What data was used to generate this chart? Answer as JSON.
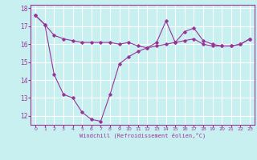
{
  "xlabel": "Windchill (Refroidissement éolien,°C)",
  "bg_color": "#c8f0f0",
  "line_color": "#993399",
  "grid_color": "#ffffff",
  "ylim": [
    11.5,
    18.2
  ],
  "xlim": [
    -0.5,
    23.5
  ],
  "yticks": [
    12,
    13,
    14,
    15,
    16,
    17,
    18
  ],
  "xticks": [
    0,
    1,
    2,
    3,
    4,
    5,
    6,
    7,
    8,
    9,
    10,
    11,
    12,
    13,
    14,
    15,
    16,
    17,
    18,
    19,
    20,
    21,
    22,
    23
  ],
  "series1_x": [
    0,
    1,
    2,
    3,
    4,
    5,
    6,
    7,
    8,
    9,
    10,
    11,
    12,
    13,
    14,
    15,
    16,
    17,
    18,
    19,
    20,
    21,
    22,
    23
  ],
  "series1_y": [
    17.6,
    17.1,
    16.5,
    16.3,
    16.2,
    16.1,
    16.1,
    16.1,
    16.1,
    16.0,
    16.1,
    15.9,
    15.8,
    16.1,
    17.3,
    16.1,
    16.7,
    16.9,
    16.2,
    16.0,
    15.9,
    15.9,
    16.0,
    16.3
  ],
  "series2_x": [
    0,
    1,
    2,
    3,
    4,
    5,
    6,
    7,
    8,
    9,
    10,
    11,
    12,
    13,
    14,
    15,
    16,
    17,
    18,
    19,
    20,
    21,
    22,
    23
  ],
  "series2_y": [
    17.6,
    17.1,
    14.3,
    13.2,
    13.0,
    12.2,
    11.8,
    11.7,
    13.2,
    14.9,
    15.3,
    15.6,
    15.8,
    15.9,
    16.0,
    16.1,
    16.2,
    16.3,
    16.0,
    15.9,
    15.9,
    15.9,
    16.0,
    16.3
  ]
}
